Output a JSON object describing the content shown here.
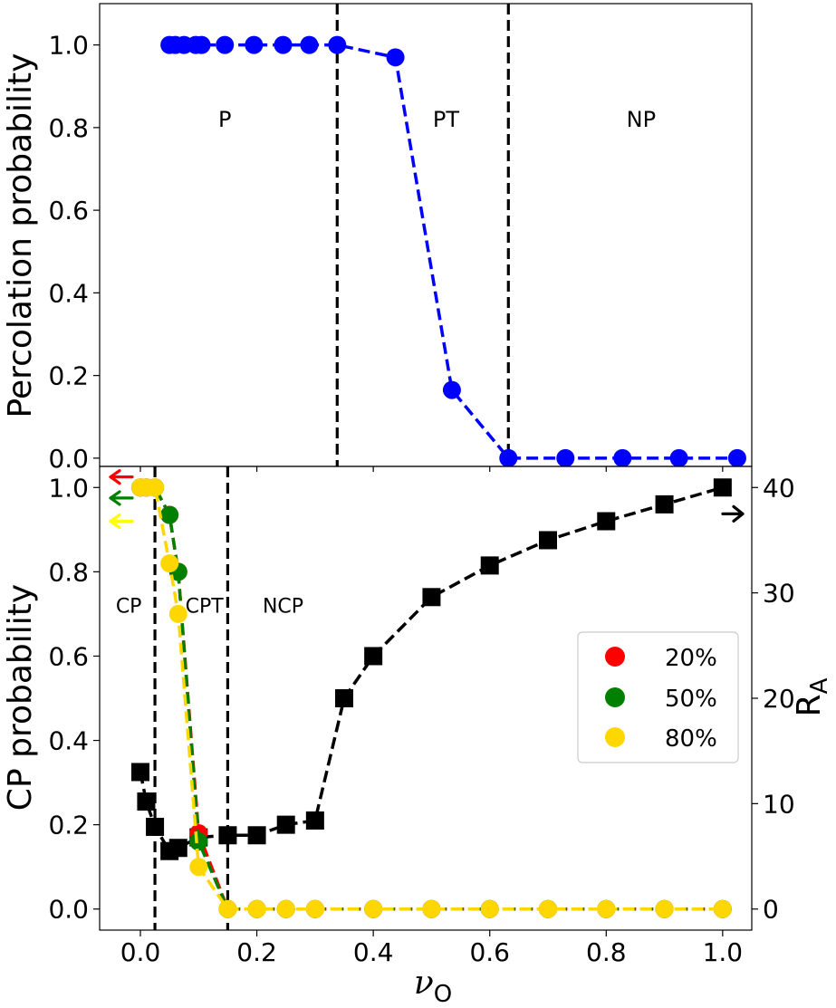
{
  "chart_data": [
    {
      "type": "line",
      "ylabel": "Percolation probability",
      "ylim": [
        -0.02,
        1.1
      ],
      "yticks": [
        0.0,
        0.2,
        0.4,
        0.6,
        0.8,
        1.0
      ],
      "ytick_labels": [
        "0.0",
        "0.2",
        "0.4",
        "0.6",
        "0.8",
        "1.0"
      ],
      "grid": false,
      "vlines": [
        0.338,
        0.632
      ],
      "region_labels": [
        {
          "text": "P",
          "x": 0.145,
          "y": 0.82
        },
        {
          "text": "PT",
          "x": 0.525,
          "y": 0.82
        },
        {
          "text": "NP",
          "x": 0.86,
          "y": 0.82
        }
      ],
      "series": [
        {
          "name": "percolation",
          "color": "#0000ff",
          "marker": "circle",
          "linestyle": "dashed",
          "x": [
            0.05,
            0.06,
            0.075,
            0.095,
            0.105,
            0.145,
            0.195,
            0.245,
            0.29,
            0.338,
            0.438,
            0.535,
            0.632,
            0.73,
            0.828,
            0.925,
            1.025
          ],
          "y": [
            1.0,
            1.0,
            1.0,
            1.0,
            1.0,
            1.0,
            1.0,
            1.0,
            1.0,
            1.0,
            0.97,
            0.165,
            0.0,
            0.0,
            0.0,
            0.0,
            0.0
          ]
        }
      ]
    },
    {
      "type": "line",
      "xlabel_main": "ν",
      "xlabel_sub": "O",
      "ylabel": "CP probability",
      "ylabel_right_main": "R",
      "ylabel_right_sub": "A",
      "xlim": [
        -0.07,
        1.05
      ],
      "xticks": [
        0.0,
        0.2,
        0.4,
        0.6,
        0.8,
        1.0
      ],
      "xtick_labels": [
        "0.0",
        "0.2",
        "0.4",
        "0.6",
        "0.8",
        "1.0"
      ],
      "ylim": [
        -0.05,
        1.05
      ],
      "yticks": [
        0.0,
        0.2,
        0.4,
        0.6,
        0.8,
        1.0
      ],
      "ytick_labels": [
        "0.0",
        "0.2",
        "0.4",
        "0.6",
        "0.8",
        "1.0"
      ],
      "y2lim": [
        -2,
        42
      ],
      "y2ticks": [
        0,
        10,
        20,
        30,
        40
      ],
      "y2tick_labels": [
        "0",
        "10",
        "20",
        "30",
        "40"
      ],
      "grid": false,
      "vlines": [
        0.025,
        0.15
      ],
      "region_labels": [
        {
          "text": "CP",
          "x": -0.02,
          "y": 0.72
        },
        {
          "text": "CPT",
          "x": 0.11,
          "y": 0.72
        },
        {
          "text": "NCP",
          "x": 0.245,
          "y": 0.72
        }
      ],
      "legend": {
        "placement": "center-right",
        "entries": [
          {
            "label": "20%",
            "color": "#ff0000"
          },
          {
            "label": "50%",
            "color": "#008000"
          },
          {
            "label": "80%",
            "color": "#ffd700"
          }
        ]
      },
      "left_arrows": [
        {
          "color": "#ff0000",
          "y": 1.025
        },
        {
          "color": "#008000",
          "y": 0.975
        },
        {
          "color": "#ffff00",
          "y": 0.92
        }
      ],
      "right_arrow": {
        "color": "#000000",
        "y2": 37.5
      },
      "series": [
        {
          "name": "20%",
          "axis": "left",
          "color": "#ff0000",
          "marker": "circle",
          "linestyle": "dashed",
          "x": [
            0.0,
            0.01,
            0.025,
            0.05,
            0.065,
            0.1,
            0.15,
            0.2,
            0.25,
            0.3,
            0.4,
            0.5,
            0.6,
            0.7,
            0.8,
            0.9,
            1.0
          ],
          "y": [
            1.0,
            1.0,
            1.0,
            0.935,
            0.8,
            0.18,
            0.0,
            0.0,
            0.0,
            0.0,
            0.0,
            0.0,
            0.0,
            0.0,
            0.0,
            0.0,
            0.0
          ]
        },
        {
          "name": "50%",
          "axis": "left",
          "color": "#008000",
          "marker": "circle",
          "linestyle": "dashed",
          "x": [
            0.0,
            0.01,
            0.025,
            0.05,
            0.065,
            0.1,
            0.15,
            0.2,
            0.25,
            0.3,
            0.4,
            0.5,
            0.6,
            0.7,
            0.8,
            0.9,
            1.0
          ],
          "y": [
            1.0,
            1.0,
            1.0,
            0.935,
            0.8,
            0.16,
            0.0,
            0.0,
            0.0,
            0.0,
            0.0,
            0.0,
            0.0,
            0.0,
            0.0,
            0.0,
            0.0
          ]
        },
        {
          "name": "80%",
          "axis": "left",
          "color": "#ffd700",
          "marker": "circle",
          "linestyle": "dashed",
          "x": [
            0.0,
            0.01,
            0.025,
            0.05,
            0.065,
            0.1,
            0.15,
            0.2,
            0.25,
            0.3,
            0.4,
            0.5,
            0.6,
            0.7,
            0.8,
            0.9,
            1.0
          ],
          "y": [
            1.0,
            1.0,
            1.0,
            0.82,
            0.7,
            0.1,
            0.0,
            0.0,
            0.0,
            0.0,
            0.0,
            0.0,
            0.0,
            0.0,
            0.0,
            0.0,
            0.0
          ]
        },
        {
          "name": "R_A",
          "axis": "right",
          "color": "#000000",
          "marker": "square",
          "linestyle": "dashed",
          "x": [
            0.0,
            0.01,
            0.025,
            0.05,
            0.065,
            0.1,
            0.15,
            0.2,
            0.25,
            0.3,
            0.35,
            0.4,
            0.5,
            0.6,
            0.7,
            0.8,
            0.9,
            1.0
          ],
          "y": [
            13.0,
            10.2,
            7.8,
            5.5,
            5.8,
            6.8,
            7.0,
            7.0,
            8.0,
            8.4,
            20.0,
            24.0,
            29.6,
            32.6,
            35.0,
            36.8,
            38.4,
            40.0
          ]
        }
      ]
    }
  ]
}
